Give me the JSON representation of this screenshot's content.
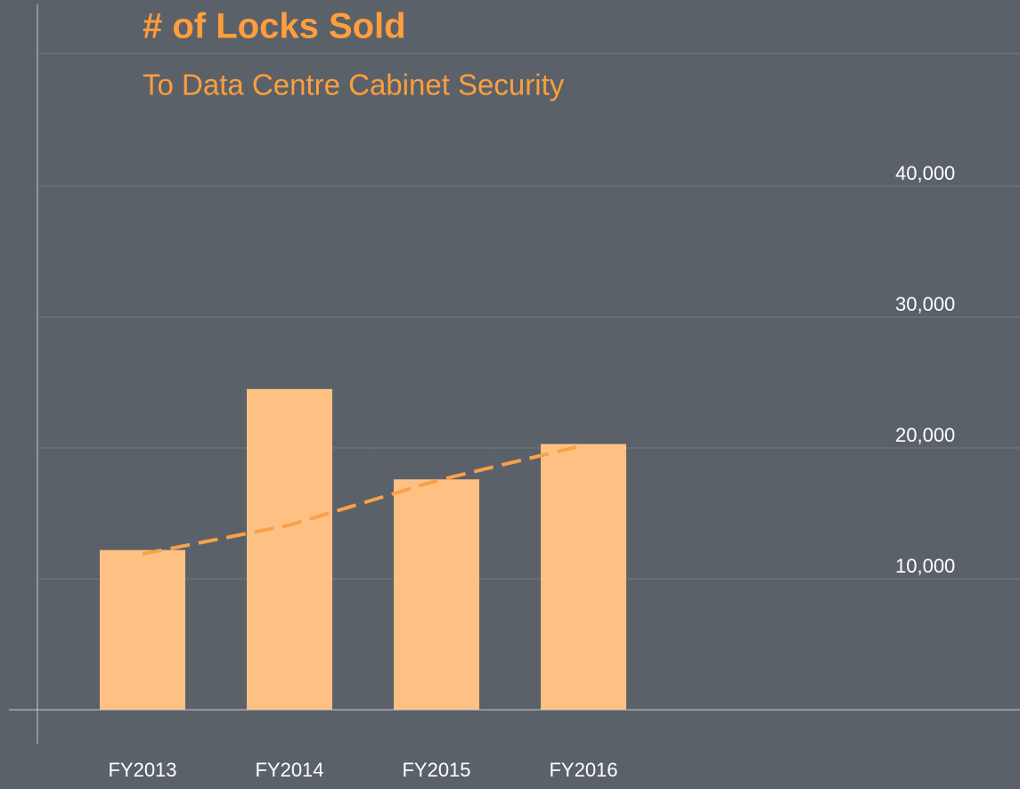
{
  "chart_data": {
    "type": "bar",
    "title": "# of Locks Sold",
    "subtitle": "To Data Centre Cabinet Security",
    "categories": [
      "FY2013",
      "FY2014",
      "FY2015",
      "FY2016"
    ],
    "values": [
      12200,
      24500,
      17600,
      20300
    ],
    "color": "#ffc183",
    "trendline": {
      "color": "#f9a04a",
      "values": [
        11900,
        14100,
        17500,
        20200
      ]
    },
    "ylim": [
      0,
      50000
    ],
    "yticks": [
      {
        "value": 10000,
        "label": "10,000"
      },
      {
        "value": 20000,
        "label": "20,000"
      },
      {
        "value": 30000,
        "label": "30,000"
      },
      {
        "value": 40000,
        "label": "40,000"
      }
    ],
    "grid": true
  }
}
